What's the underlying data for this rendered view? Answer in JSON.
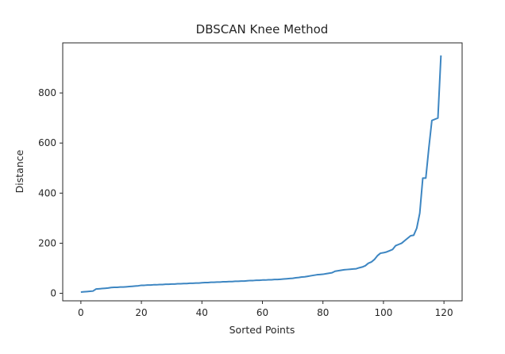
{
  "chart_data": {
    "type": "line",
    "title": "DBSCAN Knee Method",
    "xlabel": "Sorted Points",
    "ylabel": "Distance",
    "xlim": [
      -6,
      126
    ],
    "ylim": [
      -30,
      1000
    ],
    "xticks": [
      0,
      20,
      40,
      60,
      80,
      100,
      120
    ],
    "yticks": [
      0,
      200,
      400,
      600,
      800
    ],
    "grid": false,
    "legend": "none",
    "series": [
      {
        "color": "#3d86c2",
        "x": [
          0,
          1,
          2,
          3,
          4,
          5,
          6,
          7,
          8,
          9,
          10,
          11,
          12,
          13,
          14,
          15,
          16,
          17,
          18,
          19,
          20,
          21,
          22,
          23,
          24,
          25,
          26,
          27,
          28,
          29,
          30,
          31,
          32,
          33,
          34,
          35,
          36,
          37,
          38,
          39,
          40,
          41,
          42,
          43,
          44,
          45,
          46,
          47,
          48,
          49,
          50,
          51,
          52,
          53,
          54,
          55,
          56,
          57,
          58,
          59,
          60,
          61,
          62,
          63,
          64,
          65,
          66,
          67,
          68,
          69,
          70,
          71,
          72,
          73,
          74,
          75,
          76,
          77,
          78,
          79,
          80,
          81,
          82,
          83,
          84,
          85,
          86,
          87,
          88,
          89,
          90,
          91,
          92,
          93,
          94,
          95,
          96,
          97,
          98,
          99,
          100,
          101,
          102,
          103,
          104,
          105,
          106,
          107,
          108,
          109,
          110,
          111,
          112,
          113,
          114,
          115,
          116,
          117,
          118,
          119
        ],
        "y": [
          5,
          6,
          7,
          8,
          9,
          17,
          18,
          19,
          20,
          21,
          23,
          24,
          24,
          25,
          25,
          26,
          27,
          28,
          29,
          30,
          32,
          32,
          33,
          33,
          34,
          34,
          35,
          35,
          36,
          36,
          37,
          37,
          38,
          38,
          39,
          39,
          40,
          40,
          41,
          41,
          42,
          43,
          43,
          44,
          44,
          45,
          45,
          46,
          46,
          47,
          47,
          48,
          48,
          49,
          49,
          50,
          51,
          51,
          52,
          52,
          53,
          53,
          54,
          54,
          55,
          55,
          56,
          57,
          58,
          59,
          60,
          62,
          63,
          65,
          66,
          68,
          70,
          72,
          74,
          75,
          76,
          78,
          80,
          82,
          88,
          90,
          92,
          94,
          95,
          96,
          97,
          98,
          102,
          105,
          110,
          120,
          125,
          135,
          150,
          160,
          162,
          165,
          170,
          175,
          190,
          195,
          200,
          210,
          220,
          230,
          232,
          260,
          320,
          460,
          460,
          580,
          690,
          695,
          700,
          950
        ]
      }
    ]
  }
}
